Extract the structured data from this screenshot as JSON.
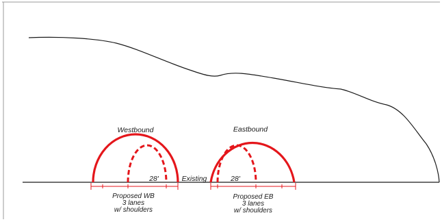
{
  "colors": {
    "tunnel": "#e4161b",
    "line": "#1a1a1a",
    "frame": "#9a9a9a",
    "background": "#ffffff"
  },
  "tunnels": {
    "westbound": {
      "direction_label": "Westbound",
      "span_label": "28'",
      "caption_line1": "Proposed WB",
      "caption_line2": "3 lanes",
      "caption_line3": "w/ shoulders"
    },
    "eastbound": {
      "direction_label": "Eastbound",
      "span_label": "28'",
      "caption_line1": "Proposed EB",
      "caption_line2": "3 lanes",
      "caption_line3": "w/ shoulders"
    }
  },
  "existing_label": "Existing"
}
